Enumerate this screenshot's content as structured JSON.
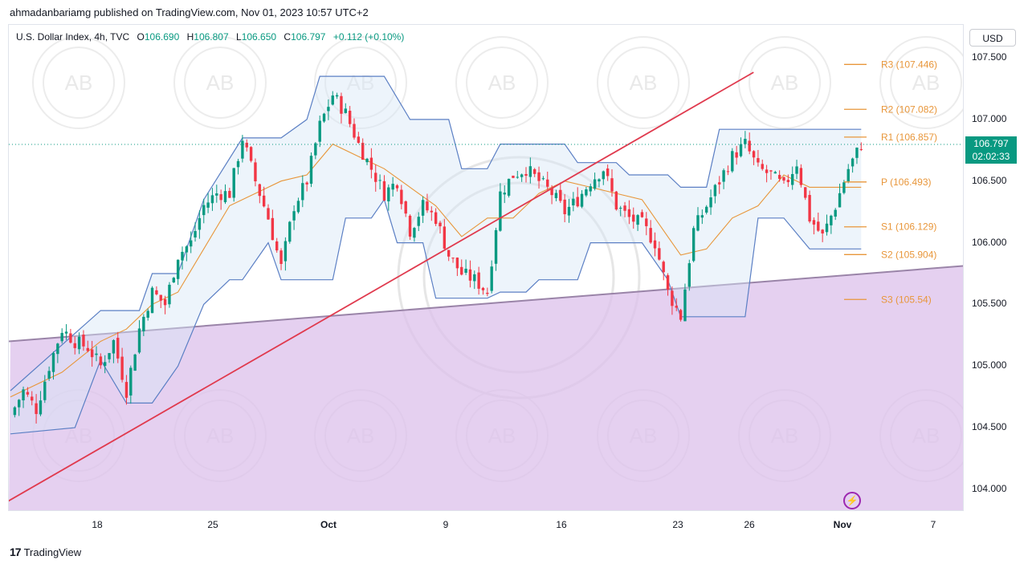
{
  "header": {
    "publish_line": "ahmadanbariamg published on TradingView.com, Nov 01, 2023 10:57 UTC+2"
  },
  "legend": {
    "symbol": "U.S. Dollar Index, 4h, TVC",
    "o_label": "O",
    "o": "106.690",
    "h_label": "H",
    "h": "106.807",
    "l_label": "L",
    "l": "106.650",
    "c_label": "C",
    "c": "106.797",
    "change": "+0.112 (+0.10%)"
  },
  "currency_button": "USD",
  "last_price": {
    "price": "106.797",
    "countdown": "02:02:33"
  },
  "footer": {
    "brand": "TradingView",
    "logo_glyph": "17"
  },
  "colors": {
    "up": "#089981",
    "down": "#f23645",
    "channel": "#5b7fc4",
    "basis": "#e8963a",
    "trendline": "#e03a4e",
    "zone": "#dcc0eb",
    "pivot": "#e8963a"
  },
  "chart_data": {
    "type": "candlestick",
    "timeframe": "4h",
    "y_axis": {
      "ticks": [
        "107.500",
        "107.000",
        "106.500",
        "106.000",
        "105.500",
        "105.000",
        "104.500",
        "104.000"
      ],
      "range": [
        103.85,
        107.7
      ]
    },
    "x_axis": {
      "ticks": [
        "18",
        "25",
        "Oct",
        "9",
        "16",
        "23",
        "26",
        "Nov",
        "7"
      ]
    },
    "pivots": [
      {
        "label": "R3 (107.446)",
        "value": 107.446
      },
      {
        "label": "R2 (107.082)",
        "value": 107.082
      },
      {
        "label": "R1 (106.857)",
        "value": 106.857
      },
      {
        "label": "P (106.493)",
        "value": 106.493
      },
      {
        "label": "S1 (106.129)",
        "value": 106.129
      },
      {
        "label": "S2 (105.904)",
        "value": 105.904
      },
      {
        "label": "S3 (105.54)",
        "value": 105.54
      }
    ],
    "close_path": [
      [
        0,
        104.6
      ],
      [
        3,
        104.8
      ],
      [
        6,
        104.65
      ],
      [
        9,
        105.0
      ],
      [
        12,
        105.3
      ],
      [
        15,
        105.2
      ],
      [
        18,
        105.15
      ],
      [
        21,
        105.0
      ],
      [
        24,
        105.2
      ],
      [
        27,
        104.8
      ],
      [
        30,
        105.3
      ],
      [
        33,
        105.6
      ],
      [
        36,
        105.5
      ],
      [
        39,
        105.9
      ],
      [
        42,
        106.0
      ],
      [
        45,
        106.3
      ],
      [
        48,
        106.4
      ],
      [
        51,
        106.4
      ],
      [
        54,
        106.85
      ],
      [
        57,
        106.5
      ],
      [
        60,
        106.2
      ],
      [
        63,
        105.8
      ],
      [
        66,
        106.3
      ],
      [
        69,
        106.5
      ],
      [
        72,
        106.95
      ],
      [
        75,
        107.2
      ],
      [
        78,
        107.05
      ],
      [
        81,
        106.8
      ],
      [
        84,
        106.6
      ],
      [
        87,
        106.4
      ],
      [
        90,
        106.5
      ],
      [
        93,
        106.1
      ],
      [
        96,
        106.3
      ],
      [
        99,
        106.2
      ],
      [
        102,
        105.9
      ],
      [
        105,
        105.75
      ],
      [
        108,
        105.7
      ],
      [
        111,
        105.6
      ],
      [
        114,
        106.4
      ],
      [
        117,
        106.55
      ],
      [
        120,
        106.6
      ],
      [
        123,
        106.5
      ],
      [
        126,
        106.4
      ],
      [
        129,
        106.25
      ],
      [
        132,
        106.35
      ],
      [
        135,
        106.5
      ],
      [
        138,
        106.6
      ],
      [
        141,
        106.3
      ],
      [
        144,
        106.2
      ],
      [
        147,
        106.15
      ],
      [
        150,
        106.0
      ],
      [
        153,
        105.6
      ],
      [
        156,
        105.4
      ],
      [
        159,
        106.1
      ],
      [
        162,
        106.3
      ],
      [
        165,
        106.5
      ],
      [
        168,
        106.7
      ],
      [
        171,
        106.8
      ],
      [
        174,
        106.6
      ],
      [
        177,
        106.55
      ],
      [
        180,
        106.45
      ],
      [
        183,
        106.65
      ],
      [
        186,
        106.2
      ],
      [
        189,
        106.05
      ],
      [
        192,
        106.3
      ],
      [
        195,
        106.6
      ],
      [
        198,
        106.797
      ]
    ],
    "channel_upper": [
      [
        0,
        104.8
      ],
      [
        21,
        105.45
      ],
      [
        30,
        105.45
      ],
      [
        33,
        105.75
      ],
      [
        39,
        105.75
      ],
      [
        45,
        106.35
      ],
      [
        54,
        106.85
      ],
      [
        63,
        106.85
      ],
      [
        69,
        107.0
      ],
      [
        72,
        107.35
      ],
      [
        87,
        107.35
      ],
      [
        93,
        107.0
      ],
      [
        102,
        107.0
      ],
      [
        105,
        106.6
      ],
      [
        111,
        106.6
      ],
      [
        114,
        106.8
      ],
      [
        129,
        106.8
      ],
      [
        132,
        106.65
      ],
      [
        141,
        106.65
      ],
      [
        144,
        106.55
      ],
      [
        153,
        106.55
      ],
      [
        156,
        106.45
      ],
      [
        162,
        106.45
      ],
      [
        165,
        106.92
      ],
      [
        180,
        106.92
      ],
      [
        186,
        106.92
      ],
      [
        198,
        106.92
      ]
    ],
    "channel_lower": [
      [
        0,
        104.45
      ],
      [
        15,
        104.5
      ],
      [
        21,
        105.05
      ],
      [
        27,
        104.7
      ],
      [
        33,
        104.7
      ],
      [
        39,
        105.0
      ],
      [
        45,
        105.5
      ],
      [
        51,
        105.7
      ],
      [
        54,
        105.7
      ],
      [
        60,
        106.0
      ],
      [
        63,
        105.7
      ],
      [
        75,
        105.7
      ],
      [
        78,
        106.2
      ],
      [
        84,
        106.2
      ],
      [
        87,
        106.35
      ],
      [
        90,
        106.0
      ],
      [
        96,
        106.0
      ],
      [
        99,
        105.55
      ],
      [
        111,
        105.55
      ],
      [
        114,
        105.6
      ],
      [
        120,
        105.6
      ],
      [
        123,
        105.7
      ],
      [
        132,
        105.7
      ],
      [
        135,
        106.0
      ],
      [
        141,
        106.0
      ],
      [
        147,
        106.0
      ],
      [
        153,
        105.7
      ],
      [
        156,
        105.4
      ],
      [
        171,
        105.4
      ],
      [
        174,
        106.2
      ],
      [
        180,
        106.2
      ],
      [
        186,
        105.95
      ],
      [
        198,
        105.95
      ]
    ],
    "basis_line": [
      [
        0,
        104.75
      ],
      [
        12,
        104.95
      ],
      [
        21,
        105.2
      ],
      [
        27,
        105.3
      ],
      [
        33,
        105.5
      ],
      [
        39,
        105.6
      ],
      [
        45,
        105.95
      ],
      [
        51,
        106.3
      ],
      [
        57,
        106.4
      ],
      [
        63,
        106.5
      ],
      [
        69,
        106.55
      ],
      [
        75,
        106.8
      ],
      [
        81,
        106.7
      ],
      [
        87,
        106.6
      ],
      [
        93,
        106.45
      ],
      [
        99,
        106.3
      ],
      [
        105,
        106.05
      ],
      [
        111,
        106.2
      ],
      [
        117,
        106.2
      ],
      [
        123,
        106.4
      ],
      [
        129,
        106.5
      ],
      [
        135,
        106.45
      ],
      [
        141,
        106.4
      ],
      [
        147,
        106.35
      ],
      [
        153,
        106.05
      ],
      [
        156,
        105.9
      ],
      [
        162,
        105.95
      ],
      [
        168,
        106.2
      ],
      [
        174,
        106.3
      ],
      [
        180,
        106.55
      ],
      [
        186,
        106.45
      ],
      [
        192,
        106.45
      ],
      [
        198,
        106.45
      ]
    ],
    "trendline": [
      [
        0,
        103.9
      ],
      [
        158,
        107.2
      ]
    ],
    "zone_top_line": [
      [
        0,
        105.2
      ],
      [
        198,
        105.8
      ]
    ]
  }
}
